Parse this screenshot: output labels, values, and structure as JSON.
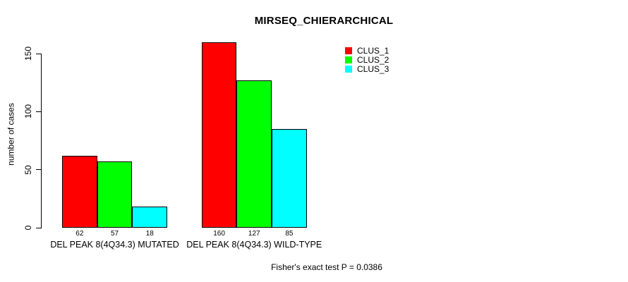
{
  "title": "MIRSEQ_CHIERARCHICAL",
  "footer": "Fisher's exact test P = 0.0386",
  "chart_data": {
    "type": "bar",
    "title": "MIRSEQ_CHIERARCHICAL",
    "xlabel": "",
    "ylabel": "number of cases",
    "categories": [
      "DEL PEAK  8(4Q34.3) MUTATED",
      "DEL PEAK  8(4Q34.3) WILD-TYPE"
    ],
    "series": [
      {
        "name": "CLUS_1",
        "color": "#ff0000",
        "values": [
          62,
          160
        ]
      },
      {
        "name": "CLUS_2",
        "color": "#00ff00",
        "values": [
          57,
          127
        ]
      },
      {
        "name": "CLUS_3",
        "color": "#00ffff",
        "values": [
          18,
          85
        ]
      }
    ],
    "bar_value_labels": [
      [
        62,
        57,
        18
      ],
      [
        160,
        127,
        85
      ]
    ],
    "yticks": [
      0,
      50,
      100,
      150
    ],
    "ylim": [
      0,
      160
    ],
    "grid": false,
    "legend_position": "top-right-inside",
    "annotation": "Fisher's exact test P = 0.0386",
    "axis_color": "#000000",
    "bar_border_color": "#000000",
    "background_color": "#ffffff"
  }
}
